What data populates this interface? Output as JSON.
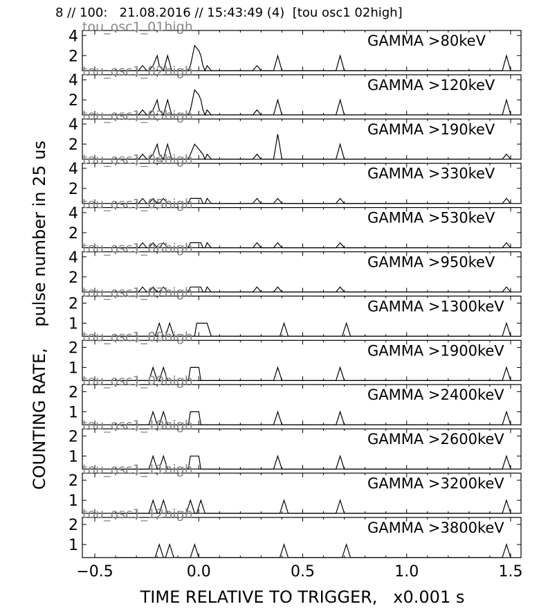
{
  "header": {
    "title": "8 // 100:   21.08.2016 // 15:43:49 (4)  [tou osc1 02high]"
  },
  "axes": {
    "xlabel": "TIME RELATIVE TO TRIGGER,   x0.001 s",
    "ylabel": "COUNTING RATE,    pulse number in 25 us"
  },
  "chart_data": {
    "type": "line",
    "xlim": [
      -0.56,
      1.55
    ],
    "xticks": [
      -0.5,
      0.0,
      0.5,
      1.0,
      1.5
    ],
    "xtick_labels": [
      "−0.5",
      "0.0",
      "0.5",
      "1.0",
      "1.5"
    ],
    "grid": false,
    "panels": [
      {
        "name": "GAMMA >80keV",
        "overlay": "tou_osc1_01high",
        "ylim": [
          0.5,
          4.5
        ],
        "yticks": [
          2,
          4
        ],
        "x": [
          -0.4,
          -0.29,
          -0.27,
          -0.25,
          -0.24,
          -0.22,
          -0.2,
          -0.19,
          -0.17,
          -0.15,
          -0.13,
          -0.05,
          -0.04,
          -0.02,
          0.0,
          0.01,
          0.02,
          0.03,
          0.04,
          0.06,
          0.08,
          0.26,
          0.28,
          0.3,
          0.36,
          0.38,
          0.4,
          0.66,
          0.68,
          0.7,
          1.46,
          1.48,
          1.5
        ],
        "values": [
          0.5,
          0.5,
          1,
          0.5,
          0.5,
          1,
          2,
          1,
          0.5,
          2,
          0.5,
          0.5,
          1,
          3,
          2.5,
          2,
          1,
          0.5,
          1,
          0.5,
          0.5,
          0.5,
          1,
          0.5,
          0.5,
          2,
          0.5,
          0.5,
          2,
          0.5,
          0.5,
          2,
          0.5
        ]
      },
      {
        "name": "GAMMA >120keV",
        "overlay": "tou_osc1_02high",
        "ylim": [
          0.5,
          4.5
        ],
        "yticks": [
          2,
          4
        ],
        "x": [
          -0.4,
          -0.29,
          -0.27,
          -0.25,
          -0.24,
          -0.22,
          -0.2,
          -0.19,
          -0.17,
          -0.15,
          -0.13,
          -0.05,
          -0.04,
          -0.02,
          0.0,
          0.01,
          0.02,
          0.03,
          0.04,
          0.06,
          0.08,
          0.26,
          0.28,
          0.3,
          0.36,
          0.38,
          0.4,
          0.66,
          0.68,
          0.7,
          1.46,
          1.48,
          1.5
        ],
        "values": [
          0.5,
          0.5,
          1,
          0.5,
          0.5,
          1,
          2,
          1,
          0.5,
          2,
          0.5,
          0.5,
          1,
          3,
          2.5,
          2,
          1,
          0.5,
          1,
          0.5,
          0.5,
          0.5,
          1,
          0.5,
          0.5,
          2,
          0.5,
          0.5,
          2,
          0.5,
          0.5,
          2,
          0.5
        ]
      },
      {
        "name": "GAMMA >190keV",
        "overlay": "tou_osc1_03high",
        "ylim": [
          0.5,
          4.5
        ],
        "yticks": [
          2,
          4
        ],
        "x": [
          -0.4,
          -0.29,
          -0.27,
          -0.25,
          -0.24,
          -0.22,
          -0.2,
          -0.19,
          -0.17,
          -0.15,
          -0.13,
          -0.05,
          -0.04,
          -0.02,
          0.0,
          0.02,
          0.03,
          0.04,
          0.06,
          0.08,
          0.26,
          0.28,
          0.3,
          0.36,
          0.38,
          0.4,
          0.66,
          0.68,
          0.7,
          1.46,
          1.48,
          1.5
        ],
        "values": [
          0.5,
          0.5,
          1,
          0.5,
          0.5,
          1,
          2,
          1,
          0.5,
          2,
          0.5,
          0.5,
          1,
          2,
          1.5,
          1,
          0.5,
          1,
          0.5,
          0.5,
          0.5,
          1,
          0.5,
          0.5,
          3,
          0.5,
          0.5,
          2,
          0.5,
          0.5,
          1,
          0.5
        ]
      },
      {
        "name": "GAMMA >330keV",
        "overlay": "tou_osc1_04high",
        "ylim": [
          0.5,
          4.5
        ],
        "yticks": [
          2,
          4
        ],
        "x": [
          -0.4,
          -0.29,
          -0.27,
          -0.25,
          -0.24,
          -0.22,
          -0.2,
          -0.19,
          -0.17,
          -0.15,
          -0.13,
          -0.05,
          -0.04,
          -0.02,
          0.01,
          0.02,
          0.03,
          0.04,
          0.06,
          0.08,
          0.26,
          0.28,
          0.3,
          0.36,
          0.38,
          0.4,
          0.66,
          0.68,
          0.7,
          1.46,
          1.48,
          1.5
        ],
        "values": [
          0.5,
          0.5,
          1,
          0.5,
          0.5,
          1,
          0.5,
          0.5,
          1,
          0.5,
          0.5,
          0.5,
          1,
          1,
          1,
          0.5,
          0.5,
          1,
          0.5,
          0.5,
          0.5,
          1,
          0.5,
          0.5,
          1,
          0.5,
          0.5,
          1,
          0.5,
          0.5,
          1,
          0.5
        ]
      },
      {
        "name": "GAMMA >530keV",
        "overlay": "tou_osc1_05high",
        "ylim": [
          0.5,
          4.5
        ],
        "yticks": [
          2,
          4
        ],
        "x": [
          -0.4,
          -0.29,
          -0.27,
          -0.25,
          -0.24,
          -0.22,
          -0.2,
          -0.19,
          -0.17,
          -0.15,
          -0.13,
          -0.05,
          -0.04,
          -0.02,
          0.01,
          0.02,
          0.03,
          0.04,
          0.06,
          0.08,
          0.26,
          0.28,
          0.3,
          0.36,
          0.38,
          0.4,
          0.66,
          0.68,
          0.7,
          1.46,
          1.48,
          1.5
        ],
        "values": [
          0.5,
          0.5,
          1,
          0.5,
          0.5,
          1,
          0.5,
          0.5,
          1,
          0.5,
          0.5,
          0.5,
          1,
          1,
          1,
          0.5,
          0.5,
          1,
          0.5,
          0.5,
          0.5,
          1,
          0.5,
          0.5,
          1,
          0.5,
          0.5,
          1,
          0.5,
          0.5,
          1,
          0.5
        ]
      },
      {
        "name": "GAMMA >950keV",
        "overlay": "tou_osc1_06high",
        "ylim": [
          0.5,
          4.5
        ],
        "yticks": [
          2,
          4
        ],
        "x": [
          -0.4,
          -0.29,
          -0.27,
          -0.25,
          -0.24,
          -0.22,
          -0.2,
          -0.19,
          -0.17,
          -0.15,
          -0.13,
          -0.05,
          -0.04,
          -0.02,
          0.01,
          0.02,
          0.03,
          0.04,
          0.06,
          0.08,
          0.26,
          0.28,
          0.3,
          0.36,
          0.38,
          0.4,
          0.66,
          0.68,
          0.7,
          1.46,
          1.48,
          1.5
        ],
        "values": [
          0.5,
          0.5,
          1,
          0.5,
          0.5,
          1,
          0.5,
          0.5,
          1,
          0.5,
          0.5,
          0.5,
          1,
          1,
          1,
          0.5,
          0.5,
          1,
          0.5,
          0.5,
          0.5,
          1,
          0.5,
          0.5,
          1,
          0.5,
          0.5,
          1,
          0.5,
          0.5,
          1,
          0.5
        ]
      },
      {
        "name": "GAMMA >1300keV",
        "overlay": "tou_osc1_07high",
        "ylim": [
          0.35,
          2.35
        ],
        "yticks": [
          1,
          2
        ],
        "x": [
          -0.4,
          -0.21,
          -0.19,
          -0.17,
          -0.16,
          -0.14,
          -0.12,
          -0.02,
          -0.01,
          0.01,
          0.03,
          0.04,
          0.06,
          0.39,
          0.41,
          0.43,
          0.69,
          0.71,
          0.73,
          1.46,
          1.48,
          1.5
        ],
        "values": [
          0.35,
          0.35,
          1,
          0.35,
          0.35,
          1,
          0.35,
          0.35,
          1,
          1,
          1,
          1,
          0.35,
          0.35,
          1,
          0.35,
          0.35,
          1,
          0.35,
          0.35,
          1,
          0.35
        ]
      },
      {
        "name": "GAMMA >1900keV",
        "overlay": "tou_osc1_08high",
        "ylim": [
          0.35,
          2.35
        ],
        "yticks": [
          1,
          2
        ],
        "x": [
          -0.4,
          -0.24,
          -0.22,
          -0.2,
          -0.19,
          -0.17,
          -0.15,
          -0.05,
          -0.04,
          -0.02,
          0.0,
          0.01,
          0.03,
          0.36,
          0.38,
          0.4,
          0.66,
          0.68,
          0.7,
          1.46,
          1.48,
          1.5
        ],
        "values": [
          0.35,
          0.35,
          1,
          0.35,
          0.35,
          1,
          0.35,
          0.35,
          1,
          1,
          1,
          0.35,
          0.35,
          0.35,
          1,
          0.35,
          0.35,
          1,
          0.35,
          0.35,
          1,
          0.35
        ]
      },
      {
        "name": "GAMMA >2400keV",
        "overlay": "tou_osc1_09high",
        "ylim": [
          0.35,
          2.35
        ],
        "yticks": [
          1,
          2
        ],
        "x": [
          -0.4,
          -0.24,
          -0.22,
          -0.2,
          -0.19,
          -0.17,
          -0.15,
          -0.05,
          -0.04,
          -0.02,
          0.0,
          0.01,
          0.03,
          0.36,
          0.38,
          0.4,
          0.66,
          0.68,
          0.7,
          1.46,
          1.48,
          1.5
        ],
        "values": [
          0.35,
          0.35,
          1,
          0.35,
          0.35,
          1,
          0.35,
          0.35,
          1,
          1,
          1,
          0.35,
          0.35,
          0.35,
          1,
          0.35,
          0.35,
          1,
          0.35,
          0.35,
          1,
          0.35
        ]
      },
      {
        "name": "GAMMA >2600keV",
        "overlay": "tou_osc1_10high",
        "ylim": [
          0.35,
          2.35
        ],
        "yticks": [
          1,
          2
        ],
        "x": [
          -0.4,
          -0.24,
          -0.22,
          -0.2,
          -0.19,
          -0.17,
          -0.15,
          -0.05,
          -0.04,
          -0.02,
          0.0,
          0.01,
          0.03,
          0.36,
          0.38,
          0.4,
          0.66,
          0.68,
          0.7,
          1.46,
          1.48,
          1.5
        ],
        "values": [
          0.35,
          0.35,
          1,
          0.35,
          0.35,
          1,
          0.35,
          0.35,
          1,
          1,
          1,
          0.35,
          0.35,
          0.35,
          1,
          0.35,
          0.35,
          1,
          0.35,
          0.35,
          1,
          0.35
        ]
      },
      {
        "name": "GAMMA >3200keV",
        "overlay": "tou_osc1_11high",
        "ylim": [
          0.35,
          2.35
        ],
        "yticks": [
          1,
          2
        ],
        "x": [
          -0.4,
          -0.24,
          -0.22,
          -0.2,
          -0.19,
          -0.17,
          -0.15,
          -0.06,
          -0.04,
          -0.02,
          -0.01,
          0.01,
          0.03,
          0.39,
          0.41,
          0.43,
          0.66,
          0.68,
          0.7,
          1.46,
          1.48,
          1.5
        ],
        "values": [
          0.35,
          0.35,
          1,
          0.35,
          0.35,
          1,
          0.35,
          0.35,
          1,
          0.35,
          0.35,
          1,
          0.35,
          0.35,
          1,
          0.35,
          0.35,
          1,
          0.35,
          0.35,
          1,
          0.35
        ]
      },
      {
        "name": "GAMMA >3800keV",
        "overlay": "tou_osc1_12high",
        "ylim": [
          0.35,
          2.35
        ],
        "yticks": [
          1,
          2
        ],
        "x": [
          -0.4,
          -0.21,
          -0.19,
          -0.17,
          -0.16,
          -0.14,
          -0.12,
          -0.04,
          -0.02,
          0.0,
          0.39,
          0.41,
          0.43,
          0.69,
          0.71,
          0.73,
          1.46,
          1.48,
          1.5
        ],
        "values": [
          0.35,
          0.35,
          1,
          0.35,
          0.35,
          1,
          0.35,
          0.35,
          1,
          0.35,
          0.35,
          1,
          0.35,
          0.35,
          1,
          0.35,
          0.35,
          1,
          0.35
        ]
      }
    ]
  }
}
